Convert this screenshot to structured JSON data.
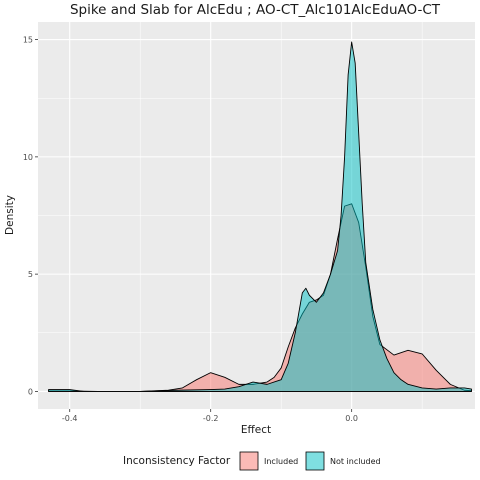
{
  "chart_data": {
    "type": "area",
    "title": "Spike and Slab for AlcEdu ; AO-CT_Alc101AlcEduAO-CT",
    "xlabel": "Effect",
    "ylabel": "Density",
    "xlim": [
      -0.445,
      0.175
    ],
    "ylim": [
      -0.75,
      15.75
    ],
    "x_ticks": [
      -0.4,
      -0.2,
      0.0
    ],
    "x_tick_labels": [
      "-0.4",
      "-0.2",
      "0.0"
    ],
    "y_ticks": [
      0,
      5,
      10,
      15
    ],
    "y_tick_labels": [
      "0",
      "5",
      "10",
      "15"
    ],
    "grid": true,
    "legend": {
      "title": "Inconsistency Factor",
      "position": "bottom",
      "entries": [
        "Included",
        "Not included"
      ]
    },
    "series": [
      {
        "name": "Included",
        "fill": "#F8766D",
        "opacity": 0.5,
        "points": [
          [
            -0.43,
            0.02
          ],
          [
            -0.4,
            0.02
          ],
          [
            -0.36,
            0.0
          ],
          [
            -0.3,
            0.0
          ],
          [
            -0.26,
            0.05
          ],
          [
            -0.24,
            0.15
          ],
          [
            -0.22,
            0.5
          ],
          [
            -0.2,
            0.8
          ],
          [
            -0.18,
            0.6
          ],
          [
            -0.16,
            0.3
          ],
          [
            -0.14,
            0.3
          ],
          [
            -0.12,
            0.4
          ],
          [
            -0.11,
            0.6
          ],
          [
            -0.1,
            1.0
          ],
          [
            -0.09,
            1.9
          ],
          [
            -0.08,
            2.7
          ],
          [
            -0.07,
            3.3
          ],
          [
            -0.06,
            3.8
          ],
          [
            -0.05,
            3.9
          ],
          [
            -0.04,
            4.1
          ],
          [
            -0.03,
            5.0
          ],
          [
            -0.02,
            6.5
          ],
          [
            -0.01,
            7.9
          ],
          [
            0.0,
            8.0
          ],
          [
            0.01,
            7.2
          ],
          [
            0.02,
            5.3
          ],
          [
            0.03,
            3.2
          ],
          [
            0.04,
            2.0
          ],
          [
            0.06,
            1.55
          ],
          [
            0.08,
            1.75
          ],
          [
            0.1,
            1.6
          ],
          [
            0.12,
            0.9
          ],
          [
            0.14,
            0.3
          ],
          [
            0.16,
            0.05
          ],
          [
            0.17,
            0.03
          ]
        ]
      },
      {
        "name": "Not included",
        "fill": "#00BFC4",
        "opacity": 0.5,
        "points": [
          [
            -0.43,
            0.08
          ],
          [
            -0.4,
            0.08
          ],
          [
            -0.38,
            0.0
          ],
          [
            -0.3,
            0.0
          ],
          [
            -0.25,
            0.05
          ],
          [
            -0.2,
            0.08
          ],
          [
            -0.18,
            0.1
          ],
          [
            -0.16,
            0.2
          ],
          [
            -0.14,
            0.4
          ],
          [
            -0.12,
            0.3
          ],
          [
            -0.1,
            0.5
          ],
          [
            -0.09,
            1.2
          ],
          [
            -0.08,
            2.5
          ],
          [
            -0.07,
            4.2
          ],
          [
            -0.065,
            4.4
          ],
          [
            -0.06,
            4.1
          ],
          [
            -0.05,
            3.8
          ],
          [
            -0.04,
            4.2
          ],
          [
            -0.03,
            5.0
          ],
          [
            -0.02,
            6.0
          ],
          [
            -0.015,
            7.5
          ],
          [
            -0.01,
            10.0
          ],
          [
            -0.005,
            13.5
          ],
          [
            0.0,
            14.9
          ],
          [
            0.005,
            14.0
          ],
          [
            0.01,
            11.0
          ],
          [
            0.015,
            8.0
          ],
          [
            0.02,
            5.5
          ],
          [
            0.03,
            3.5
          ],
          [
            0.04,
            2.2
          ],
          [
            0.05,
            1.4
          ],
          [
            0.06,
            0.8
          ],
          [
            0.07,
            0.5
          ],
          [
            0.08,
            0.3
          ],
          [
            0.1,
            0.15
          ],
          [
            0.12,
            0.1
          ],
          [
            0.14,
            0.15
          ],
          [
            0.16,
            0.15
          ],
          [
            0.17,
            0.1
          ]
        ]
      }
    ]
  }
}
